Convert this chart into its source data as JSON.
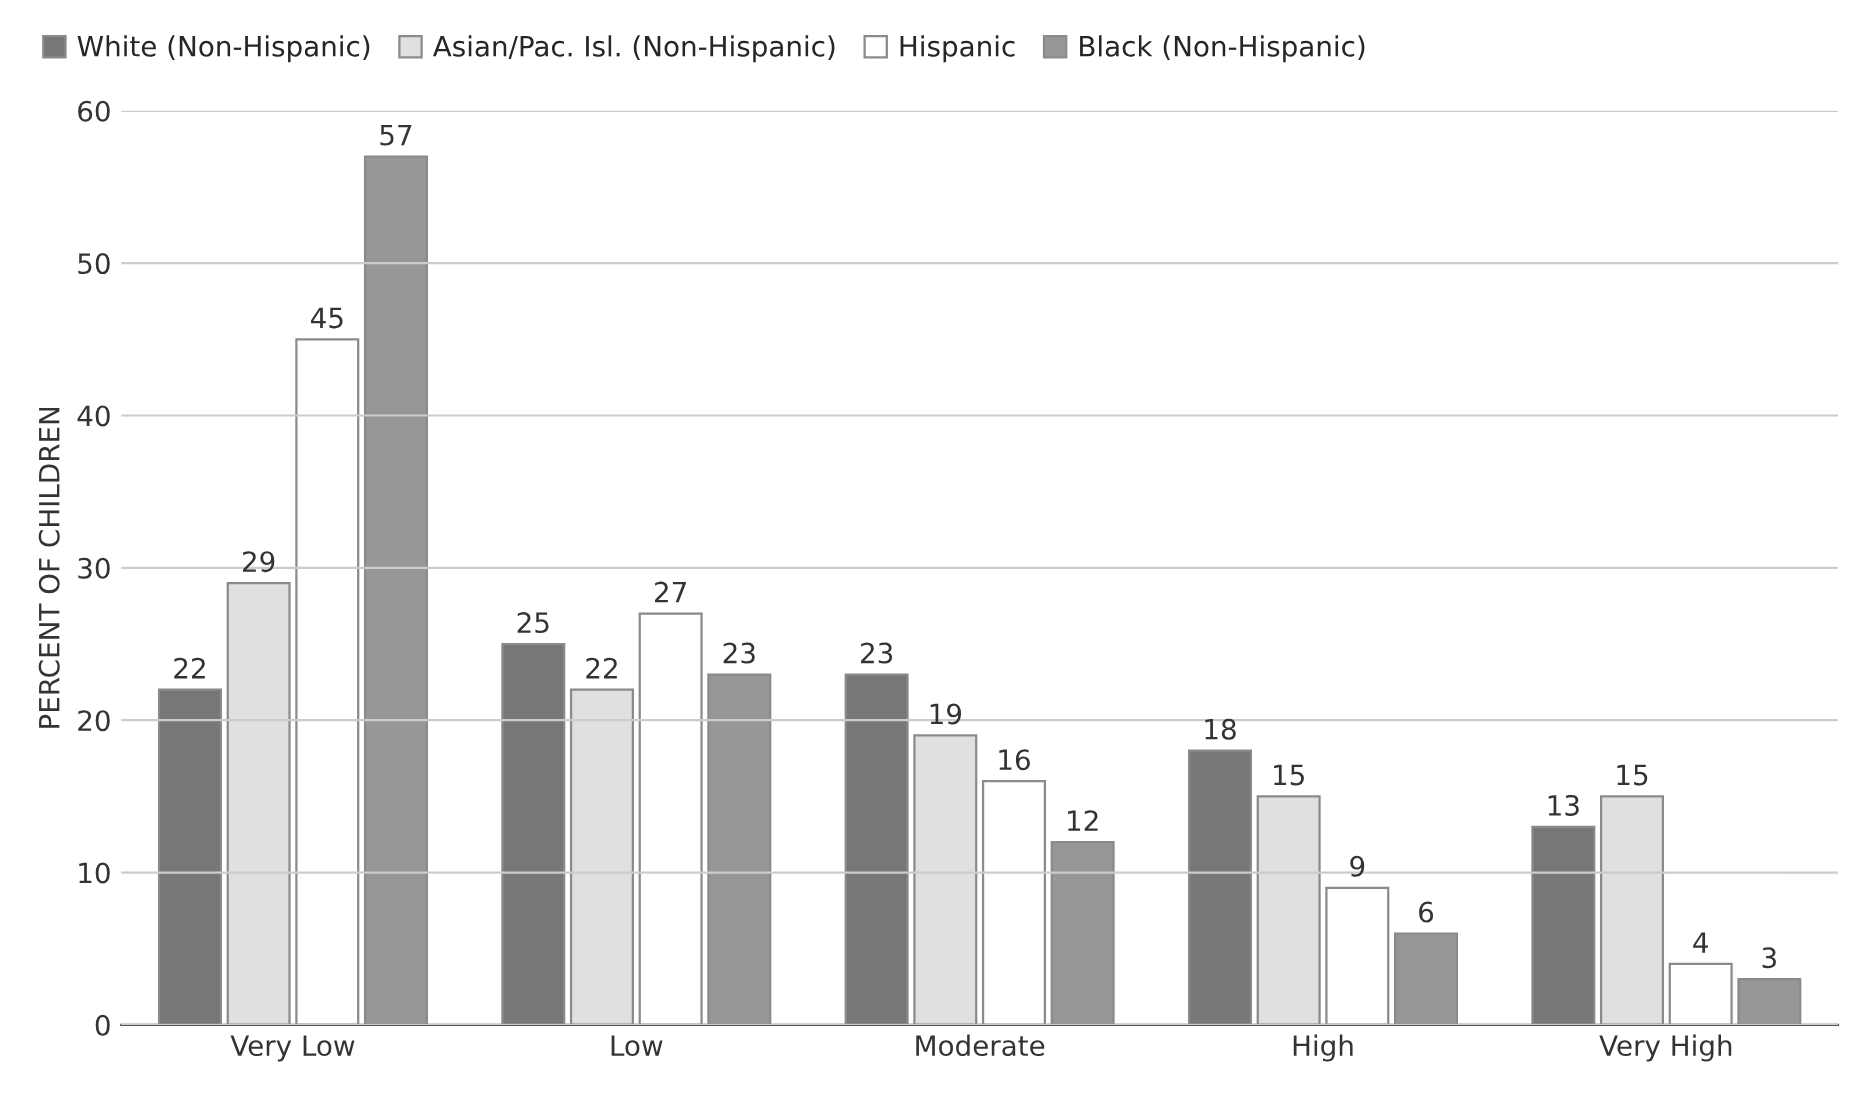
{
  "chart_data": {
    "type": "bar",
    "ylabel": "PERCENT OF CHILDREN",
    "categories": [
      "Very Low",
      "Low",
      "Moderate",
      "High",
      "Very High"
    ],
    "series": [
      {
        "name": "White (Non-Hispanic)",
        "color": "#77777a",
        "values": [
          22,
          25,
          23,
          18,
          13
        ]
      },
      {
        "name": "Asian/Pac. Isl. (Non-Hispanic)",
        "color": "#e0e0e2",
        "values": [
          29,
          22,
          19,
          15,
          15
        ]
      },
      {
        "name": "Hispanic",
        "color": "#ffffff",
        "values": [
          45,
          27,
          16,
          9,
          4
        ]
      },
      {
        "name": "Black (Non-Hispanic)",
        "color": "#97979a",
        "values": [
          57,
          23,
          12,
          6,
          3
        ]
      }
    ],
    "ylim": [
      0,
      60
    ],
    "yticks": [
      0,
      10,
      20,
      30,
      40,
      50,
      60
    ],
    "grid": "y",
    "legend": "top left",
    "data_labels": true
  }
}
